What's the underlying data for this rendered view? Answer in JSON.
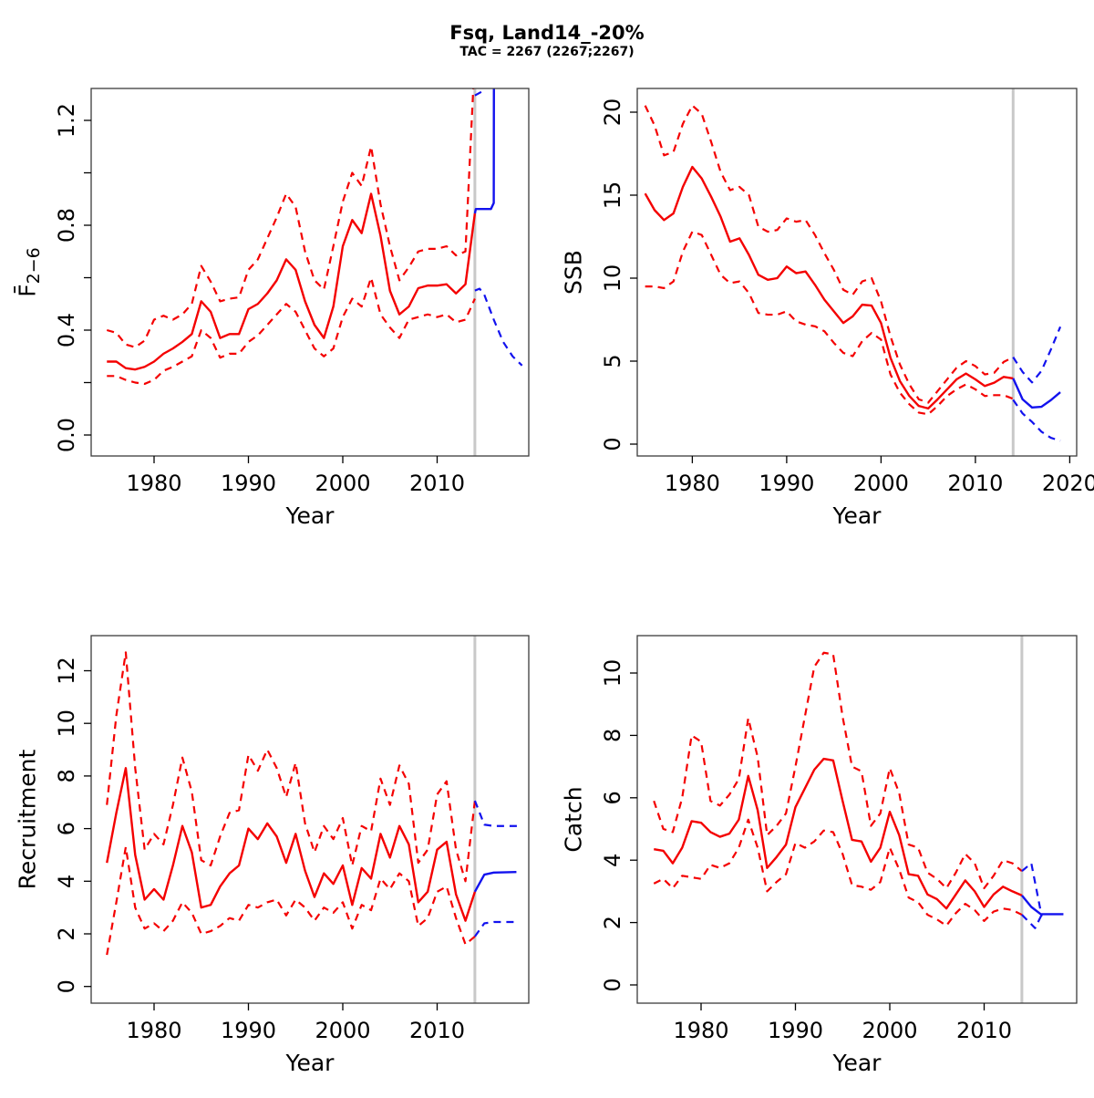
{
  "header": {
    "title": "Fsq, Land14_-20%",
    "subtitle": "TAC = 2267 (2267;2267)"
  },
  "colors": {
    "historical": "#f40000",
    "forecast": "#1212ee",
    "forecast_vline": "#c9c9c9",
    "axis_box": "#3c3c3c",
    "text": "#000000"
  },
  "chart_data": [
    {
      "id": "f",
      "type": "line",
      "title": "",
      "xlabel": "Year",
      "ylabel": "F̄",
      "ylabel_sub": "2−6",
      "legend_position": "none",
      "grid": false,
      "xlim": [
        1973.3,
        2019.7
      ],
      "ylim": [
        -0.08,
        1.32
      ],
      "xticks": {
        "values": [
          1980,
          1990,
          2000,
          2010
        ],
        "labels": [
          "1980",
          "1990",
          "2000",
          "2010"
        ]
      },
      "yticks": {
        "values": [
          0.0,
          0.2,
          0.4,
          0.6,
          0.8,
          1.0,
          1.2
        ],
        "labels": [
          "0.0",
          "",
          "0.4",
          "",
          "0.8",
          "",
          "1.2"
        ]
      },
      "vline_x": 2014,
      "historical": {
        "years": [
          1975,
          1976,
          1977,
          1978,
          1979,
          1980,
          1981,
          1982,
          1983,
          1984,
          1985,
          1986,
          1987,
          1988,
          1989,
          1990,
          1991,
          1992,
          1993,
          1994,
          1995,
          1996,
          1997,
          1998,
          1999,
          2000,
          2001,
          2002,
          2003,
          2004,
          2005,
          2006,
          2007,
          2008,
          2009,
          2010,
          2011,
          2012,
          2013,
          2014
        ],
        "median": [
          0.28,
          0.28,
          0.255,
          0.25,
          0.26,
          0.28,
          0.31,
          0.33,
          0.355,
          0.385,
          0.51,
          0.47,
          0.37,
          0.385,
          0.385,
          0.48,
          0.5,
          0.54,
          0.59,
          0.67,
          0.63,
          0.51,
          0.42,
          0.37,
          0.49,
          0.72,
          0.82,
          0.77,
          0.92,
          0.76,
          0.55,
          0.46,
          0.49,
          0.56,
          0.57,
          0.57,
          0.575,
          0.54,
          0.575,
          0.845
        ],
        "upper": [
          0.4,
          0.39,
          0.345,
          0.335,
          0.36,
          0.44,
          0.455,
          0.44,
          0.46,
          0.5,
          0.645,
          0.585,
          0.51,
          0.52,
          0.525,
          0.63,
          0.67,
          0.75,
          0.83,
          0.92,
          0.87,
          0.7,
          0.59,
          0.555,
          0.72,
          0.89,
          1.0,
          0.95,
          1.1,
          0.88,
          0.72,
          0.59,
          0.64,
          0.7,
          0.71,
          0.71,
          0.72,
          0.685,
          0.7,
          1.45
        ],
        "lower": [
          0.225,
          0.225,
          0.21,
          0.2,
          0.195,
          0.21,
          0.245,
          0.26,
          0.28,
          0.3,
          0.4,
          0.37,
          0.295,
          0.31,
          0.31,
          0.355,
          0.38,
          0.42,
          0.46,
          0.5,
          0.47,
          0.4,
          0.33,
          0.3,
          0.33,
          0.45,
          0.52,
          0.49,
          0.6,
          0.46,
          0.41,
          0.37,
          0.44,
          0.45,
          0.46,
          0.45,
          0.46,
          0.43,
          0.44,
          0.52
        ]
      },
      "forecast": {
        "median": {
          "x": [
            2014,
            2014.1,
            2015.7,
            2016,
            2016.02
          ],
          "y": [
            0.845,
            0.862,
            0.862,
            0.885,
            1.45
          ]
        },
        "upper": {
          "x": [
            2014,
            2015,
            2015.4
          ],
          "y": [
            1.295,
            1.315,
            1.45
          ]
        },
        "lower": {
          "x": [
            2014,
            2014.5,
            2015,
            2016,
            2017,
            2018,
            2019
          ],
          "y": [
            0.551,
            0.558,
            0.535,
            0.44,
            0.355,
            0.3,
            0.265
          ]
        }
      }
    },
    {
      "id": "ssb",
      "type": "line",
      "title": "",
      "xlabel": "Year",
      "ylabel": "SSB",
      "ylabel_sub": "",
      "legend_position": "none",
      "grid": false,
      "xlim": [
        1974.2,
        2020.7
      ],
      "ylim": [
        -0.7,
        21.4
      ],
      "xticks": {
        "values": [
          1980,
          1990,
          2000,
          2010,
          2020
        ],
        "labels": [
          "1980",
          "1990",
          "2000",
          "2010",
          "2020"
        ]
      },
      "yticks": {
        "values": [
          0,
          5,
          10,
          15,
          20
        ],
        "labels": [
          "0",
          "5",
          "10",
          "15",
          "20"
        ]
      },
      "vline_x": 2014,
      "historical": {
        "years": [
          1975,
          1976,
          1977,
          1978,
          1979,
          1980,
          1981,
          1982,
          1983,
          1984,
          1985,
          1986,
          1987,
          1988,
          1989,
          1990,
          1991,
          1992,
          1993,
          1994,
          1995,
          1996,
          1997,
          1998,
          1999,
          2000,
          2001,
          2002,
          2003,
          2004,
          2005,
          2006,
          2007,
          2008,
          2009,
          2010,
          2011,
          2012,
          2013,
          2014
        ],
        "median": [
          15.1,
          14.1,
          13.5,
          13.9,
          15.5,
          16.7,
          16.0,
          14.9,
          13.7,
          12.2,
          12.4,
          11.4,
          10.2,
          9.9,
          10.0,
          10.7,
          10.3,
          10.4,
          9.6,
          8.7,
          8.0,
          7.3,
          7.7,
          8.4,
          8.35,
          7.3,
          5.2,
          3.8,
          2.9,
          2.3,
          2.15,
          2.7,
          3.3,
          3.9,
          4.25,
          3.9,
          3.5,
          3.7,
          4.05,
          3.96
        ],
        "upper": [
          20.4,
          19.2,
          17.4,
          17.6,
          19.3,
          20.4,
          19.9,
          18.2,
          16.4,
          15.3,
          15.5,
          15.0,
          13.1,
          12.8,
          12.9,
          13.6,
          13.4,
          13.5,
          12.6,
          11.5,
          10.5,
          9.3,
          9.0,
          9.8,
          10.0,
          8.6,
          6.5,
          4.8,
          3.6,
          2.7,
          2.5,
          3.2,
          3.9,
          4.6,
          5.0,
          4.7,
          4.2,
          4.3,
          4.95,
          5.24
        ],
        "lower": [
          9.5,
          9.5,
          9.4,
          9.8,
          11.6,
          12.8,
          12.6,
          11.4,
          10.2,
          9.7,
          9.8,
          9.1,
          7.9,
          7.8,
          7.8,
          8.0,
          7.4,
          7.2,
          7.1,
          6.8,
          6.1,
          5.5,
          5.3,
          6.2,
          6.7,
          6.3,
          4.2,
          3.1,
          2.4,
          1.9,
          1.8,
          2.3,
          2.9,
          3.3,
          3.6,
          3.3,
          2.9,
          2.95,
          2.95,
          2.73
        ]
      },
      "forecast": {
        "median": {
          "x": [
            2014,
            2015,
            2016,
            2017,
            2018,
            2019
          ],
          "y": [
            3.96,
            2.7,
            2.21,
            2.25,
            2.65,
            3.13
          ]
        },
        "upper": {
          "x": [
            2014,
            2015,
            2016,
            2017,
            2018,
            2019
          ],
          "y": [
            5.24,
            4.35,
            3.72,
            4.41,
            5.7,
            7.07
          ]
        },
        "lower": {
          "x": [
            2014,
            2015,
            2016,
            2017,
            2018,
            2019
          ],
          "y": [
            2.67,
            1.85,
            1.34,
            0.75,
            0.38,
            0.2
          ]
        }
      }
    },
    {
      "id": "recruitment",
      "type": "line",
      "title": "",
      "xlabel": "Year",
      "ylabel": "Recruitment",
      "ylabel_sub": "",
      "legend_position": "none",
      "grid": false,
      "xlim": [
        1973.3,
        2019.7
      ],
      "ylim": [
        -0.63,
        13.34
      ],
      "xticks": {
        "values": [
          1980,
          1990,
          2000,
          2010
        ],
        "labels": [
          "1980",
          "1990",
          "2000",
          "2010"
        ]
      },
      "yticks": {
        "values": [
          0,
          2,
          4,
          6,
          8,
          10,
          12
        ],
        "labels": [
          "0",
          "2",
          "4",
          "6",
          "8",
          "10",
          "12"
        ]
      },
      "vline_x": 2014,
      "historical": {
        "years": [
          1975,
          1976,
          1977,
          1978,
          1979,
          1980,
          1981,
          1982,
          1983,
          1984,
          1985,
          1986,
          1987,
          1988,
          1989,
          1990,
          1991,
          1992,
          1993,
          1994,
          1995,
          1996,
          1997,
          1998,
          1999,
          2000,
          2001,
          2002,
          2003,
          2004,
          2005,
          2006,
          2007,
          2008,
          2009,
          2010,
          2011,
          2012,
          2013,
          2014
        ],
        "median": [
          4.7,
          6.6,
          8.3,
          5.0,
          3.3,
          3.7,
          3.3,
          4.6,
          6.1,
          5.1,
          3.0,
          3.1,
          3.8,
          4.3,
          4.6,
          6.0,
          5.6,
          6.2,
          5.7,
          4.7,
          5.8,
          4.4,
          3.4,
          4.3,
          3.9,
          4.6,
          3.1,
          4.5,
          4.1,
          5.8,
          4.9,
          6.1,
          5.4,
          3.2,
          3.6,
          5.2,
          5.5,
          3.5,
          2.5,
          3.6
        ],
        "upper": [
          6.9,
          10.3,
          12.7,
          8.3,
          5.2,
          5.8,
          5.4,
          6.9,
          8.7,
          7.4,
          4.8,
          4.6,
          5.7,
          6.6,
          6.7,
          8.8,
          8.2,
          9.0,
          8.3,
          7.2,
          8.5,
          6.2,
          5.1,
          6.1,
          5.6,
          6.4,
          4.6,
          6.1,
          5.9,
          7.9,
          6.9,
          8.4,
          7.7,
          4.7,
          5.2,
          7.3,
          7.8,
          5.2,
          4.0,
          7.06
        ],
        "lower": [
          1.2,
          3.2,
          5.3,
          3.0,
          2.2,
          2.4,
          2.1,
          2.5,
          3.2,
          2.8,
          2.0,
          2.1,
          2.3,
          2.6,
          2.5,
          3.1,
          3.0,
          3.2,
          3.3,
          2.7,
          3.3,
          3.0,
          2.5,
          3.0,
          2.8,
          3.2,
          2.2,
          3.1,
          2.9,
          4.1,
          3.7,
          4.3,
          4.0,
          2.3,
          2.6,
          3.6,
          3.8,
          2.6,
          1.6,
          1.9
        ]
      },
      "forecast": {
        "median": {
          "x": [
            2014,
            2015,
            2016,
            2018.4
          ],
          "y": [
            3.6,
            4.25,
            4.33,
            4.35
          ]
        },
        "upper": {
          "x": [
            2014,
            2015,
            2016,
            2018.45
          ],
          "y": [
            7.06,
            6.15,
            6.1,
            6.1
          ]
        },
        "lower": {
          "x": [
            2014,
            2015,
            2016,
            2018.4
          ],
          "y": [
            1.9,
            2.4,
            2.45,
            2.45
          ]
        }
      }
    },
    {
      "id": "catch",
      "type": "line",
      "title": "",
      "xlabel": "Year",
      "ylabel": "Catch",
      "ylabel_sub": "",
      "legend_position": "none",
      "grid": false,
      "xlim": [
        1973.4,
        2019.8
      ],
      "ylim": [
        -0.58,
        11.2
      ],
      "xticks": {
        "values": [
          1980,
          1990,
          2000,
          2010
        ],
        "labels": [
          "1980",
          "1990",
          "2000",
          "2010"
        ]
      },
      "yticks": {
        "values": [
          0,
          2,
          4,
          6,
          8,
          10
        ],
        "labels": [
          "0",
          "2",
          "4",
          "6",
          "8",
          "10"
        ]
      },
      "vline_x": 2014,
      "historical": {
        "years": [
          1975,
          1976,
          1977,
          1978,
          1979,
          1980,
          1981,
          1982,
          1983,
          1984,
          1985,
          1986,
          1987,
          1988,
          1989,
          1990,
          1991,
          1992,
          1993,
          1994,
          1995,
          1996,
          1997,
          1998,
          1999,
          2000,
          2001,
          2002,
          2003,
          2004,
          2005,
          2006,
          2007,
          2008,
          2009,
          2010,
          2011,
          2012,
          2013,
          2014
        ],
        "median": [
          4.35,
          4.3,
          3.9,
          4.4,
          5.25,
          5.2,
          4.9,
          4.75,
          4.85,
          5.3,
          6.7,
          5.6,
          3.75,
          4.1,
          4.5,
          5.7,
          6.3,
          6.9,
          7.25,
          7.2,
          5.9,
          4.65,
          4.6,
          3.95,
          4.4,
          5.55,
          4.8,
          3.55,
          3.5,
          2.9,
          2.75,
          2.45,
          2.9,
          3.35,
          3.0,
          2.5,
          2.9,
          3.15,
          3.0,
          2.87
        ],
        "upper": [
          5.9,
          5.0,
          4.9,
          6.0,
          8.0,
          7.8,
          5.9,
          5.75,
          6.1,
          6.6,
          8.55,
          7.3,
          4.8,
          5.1,
          5.5,
          7.0,
          8.6,
          10.2,
          10.65,
          10.6,
          8.6,
          7.0,
          6.85,
          5.1,
          5.5,
          6.95,
          6.15,
          4.5,
          4.4,
          3.6,
          3.4,
          3.1,
          3.6,
          4.2,
          3.9,
          3.1,
          3.5,
          4.0,
          3.9,
          3.65
        ],
        "lower": [
          3.25,
          3.4,
          3.1,
          3.5,
          3.45,
          3.4,
          3.85,
          3.75,
          3.9,
          4.4,
          5.3,
          4.4,
          3.0,
          3.3,
          3.55,
          4.55,
          4.4,
          4.6,
          4.95,
          4.9,
          4.2,
          3.2,
          3.15,
          3.05,
          3.3,
          4.4,
          3.7,
          2.8,
          2.65,
          2.25,
          2.1,
          1.9,
          2.3,
          2.6,
          2.4,
          2.05,
          2.35,
          2.45,
          2.4,
          2.25
        ]
      },
      "forecast": {
        "median": {
          "x": [
            2014,
            2015,
            2016,
            2018.4
          ],
          "y": [
            2.87,
            2.5,
            2.267,
            2.267
          ]
        },
        "upper": {
          "x": [
            2014,
            2015,
            2016.1
          ],
          "y": [
            3.65,
            3.9,
            2.2
          ]
        },
        "lower": {
          "x": [
            2014,
            2015.4,
            2016.1
          ],
          "y": [
            2.25,
            1.82,
            2.25
          ]
        }
      }
    }
  ]
}
